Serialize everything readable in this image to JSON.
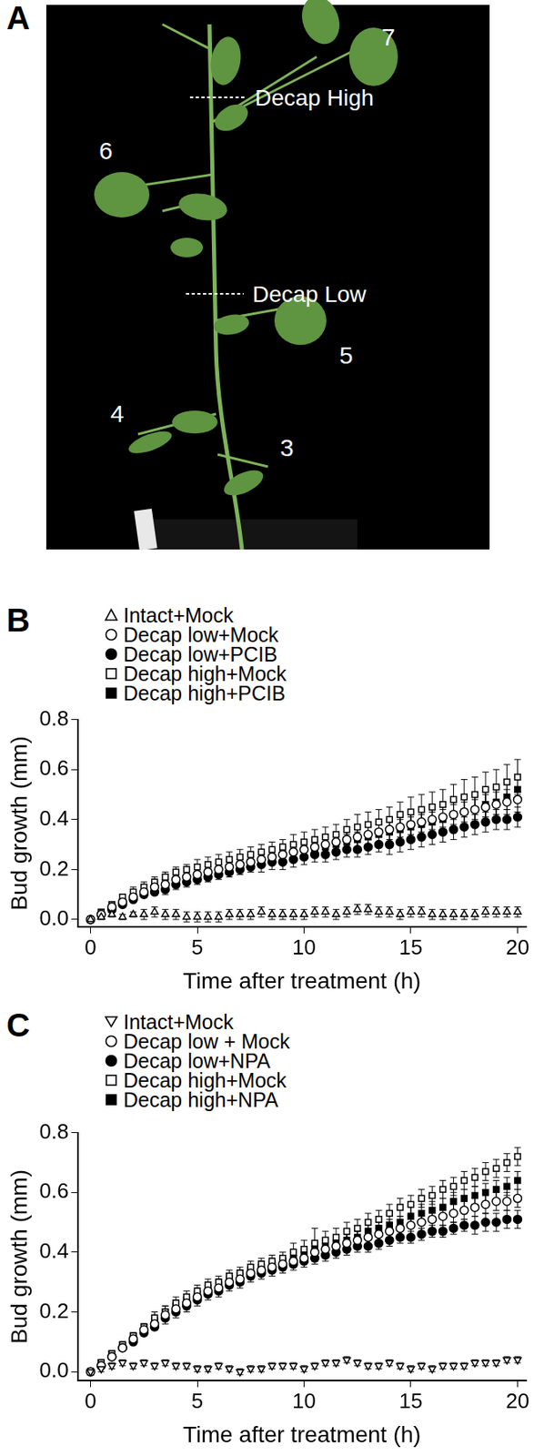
{
  "panel_a": {
    "panel_label": "A",
    "leaf_labels": [
      "7",
      "6",
      "5",
      "4",
      "3"
    ],
    "cut_labels": [
      "Decap High",
      "Decap Low"
    ]
  },
  "chart_data": [
    {
      "type": "scatter",
      "panel_label": "B",
      "x_label": "Time after treatment (h)",
      "y_label": "Bud growth (mm)",
      "xlim": [
        -0.6,
        20.4
      ],
      "xticks": [
        0,
        5,
        10,
        15,
        20
      ],
      "ylim": [
        -0.03,
        0.8
      ],
      "yticks": [
        {
          "value": 0,
          "label": "0.0"
        },
        0.2,
        0.4,
        0.6,
        0.8
      ],
      "grid": false,
      "legend": "top-left",
      "x": [
        0,
        0.5,
        1,
        1.5,
        2,
        2.5,
        3,
        3.5,
        4,
        4.5,
        5,
        5.5,
        6,
        6.5,
        7,
        7.5,
        8,
        8.5,
        9,
        9.5,
        10,
        10.5,
        11,
        11.5,
        12,
        12.5,
        13,
        13.5,
        14,
        14.5,
        15,
        15.5,
        16,
        16.5,
        17,
        17.5,
        18,
        18.5,
        19,
        19.5,
        20
      ],
      "series": [
        {
          "name": "Intact+Mock",
          "color": "#000000",
          "marker": "open-triangle-up",
          "values": [
            0.0,
            0.01,
            0.02,
            0.01,
            0.02,
            0.02,
            0.03,
            0.02,
            0.02,
            0.01,
            0.01,
            0.01,
            0.01,
            0.02,
            0.02,
            0.02,
            0.03,
            0.02,
            0.02,
            0.02,
            0.02,
            0.03,
            0.03,
            0.02,
            0.03,
            0.04,
            0.04,
            0.03,
            0.03,
            0.02,
            0.03,
            0.03,
            0.02,
            0.02,
            0.02,
            0.02,
            0.02,
            0.03,
            0.03,
            0.03,
            0.03
          ],
          "errors": [
            0.0,
            0.01,
            0.01,
            0.01,
            0.01,
            0.02,
            0.02,
            0.02,
            0.02,
            0.02,
            0.02,
            0.02,
            0.02,
            0.02,
            0.02,
            0.02,
            0.02,
            0.02,
            0.02,
            0.02,
            0.02,
            0.02,
            0.02,
            0.02,
            0.02,
            0.02,
            0.02,
            0.02,
            0.02,
            0.02,
            0.02,
            0.02,
            0.02,
            0.02,
            0.02,
            0.02,
            0.02,
            0.02,
            0.02,
            0.02,
            0.02
          ]
        },
        {
          "name": "Decap low+Mock",
          "color": "#000000",
          "marker": "open-circle",
          "values": [
            0.0,
            0.02,
            0.05,
            0.07,
            0.09,
            0.11,
            0.13,
            0.14,
            0.16,
            0.17,
            0.18,
            0.19,
            0.2,
            0.21,
            0.22,
            0.23,
            0.24,
            0.25,
            0.26,
            0.27,
            0.28,
            0.29,
            0.3,
            0.31,
            0.32,
            0.33,
            0.34,
            0.35,
            0.36,
            0.37,
            0.38,
            0.39,
            0.4,
            0.41,
            0.42,
            0.43,
            0.44,
            0.45,
            0.46,
            0.47,
            0.48
          ],
          "errors": [
            0.0,
            0.01,
            0.01,
            0.01,
            0.01,
            0.01,
            0.02,
            0.02,
            0.02,
            0.02,
            0.02,
            0.02,
            0.02,
            0.02,
            0.02,
            0.03,
            0.03,
            0.03,
            0.03,
            0.03,
            0.03,
            0.03,
            0.03,
            0.03,
            0.03,
            0.04,
            0.04,
            0.04,
            0.04,
            0.04,
            0.04,
            0.04,
            0.04,
            0.04,
            0.05,
            0.05,
            0.05,
            0.05,
            0.05,
            0.05,
            0.05
          ]
        },
        {
          "name": "Decap low+PCIB",
          "color": "#000000",
          "marker": "filled-circle",
          "values": [
            0.0,
            0.02,
            0.04,
            0.06,
            0.08,
            0.1,
            0.11,
            0.12,
            0.14,
            0.15,
            0.16,
            0.17,
            0.18,
            0.19,
            0.2,
            0.21,
            0.22,
            0.23,
            0.23,
            0.24,
            0.25,
            0.26,
            0.26,
            0.27,
            0.28,
            0.28,
            0.29,
            0.3,
            0.3,
            0.31,
            0.32,
            0.33,
            0.34,
            0.35,
            0.36,
            0.37,
            0.38,
            0.39,
            0.4,
            0.4,
            0.41
          ],
          "errors": [
            0.0,
            0.01,
            0.01,
            0.01,
            0.01,
            0.01,
            0.01,
            0.02,
            0.02,
            0.02,
            0.02,
            0.02,
            0.02,
            0.02,
            0.02,
            0.02,
            0.03,
            0.03,
            0.03,
            0.03,
            0.03,
            0.03,
            0.03,
            0.03,
            0.03,
            0.03,
            0.03,
            0.03,
            0.04,
            0.04,
            0.04,
            0.04,
            0.04,
            0.04,
            0.04,
            0.04,
            0.04,
            0.04,
            0.04,
            0.04,
            0.04
          ]
        },
        {
          "name": "Decap high+Mock",
          "color": "#000000",
          "marker": "open-square",
          "values": [
            0.0,
            0.03,
            0.06,
            0.09,
            0.11,
            0.13,
            0.15,
            0.17,
            0.19,
            0.2,
            0.21,
            0.22,
            0.23,
            0.24,
            0.25,
            0.26,
            0.27,
            0.28,
            0.29,
            0.3,
            0.31,
            0.32,
            0.33,
            0.34,
            0.36,
            0.37,
            0.38,
            0.39,
            0.4,
            0.42,
            0.43,
            0.44,
            0.45,
            0.46,
            0.48,
            0.49,
            0.5,
            0.52,
            0.53,
            0.55,
            0.57
          ],
          "errors": [
            0.0,
            0.01,
            0.01,
            0.01,
            0.02,
            0.02,
            0.02,
            0.02,
            0.02,
            0.02,
            0.03,
            0.03,
            0.03,
            0.03,
            0.03,
            0.03,
            0.03,
            0.03,
            0.03,
            0.04,
            0.04,
            0.04,
            0.04,
            0.04,
            0.04,
            0.05,
            0.05,
            0.05,
            0.05,
            0.05,
            0.06,
            0.06,
            0.06,
            0.06,
            0.06,
            0.07,
            0.07,
            0.07,
            0.07,
            0.07,
            0.07
          ]
        },
        {
          "name": "Decap high+PCIB",
          "color": "#000000",
          "marker": "filled-square",
          "values": [
            0.0,
            0.02,
            0.04,
            0.07,
            0.09,
            0.11,
            0.12,
            0.14,
            0.15,
            0.16,
            0.18,
            0.19,
            0.2,
            0.21,
            0.22,
            0.23,
            0.24,
            0.25,
            0.26,
            0.27,
            0.28,
            0.28,
            0.29,
            0.3,
            0.31,
            0.32,
            0.33,
            0.34,
            0.35,
            0.36,
            0.37,
            0.38,
            0.39,
            0.4,
            0.42,
            0.43,
            0.44,
            0.46,
            0.47,
            0.49,
            0.52
          ],
          "errors": [
            0.0,
            0.01,
            0.01,
            0.01,
            0.01,
            0.01,
            0.02,
            0.02,
            0.02,
            0.02,
            0.02,
            0.02,
            0.02,
            0.02,
            0.02,
            0.03,
            0.03,
            0.03,
            0.03,
            0.03,
            0.03,
            0.03,
            0.03,
            0.03,
            0.03,
            0.03,
            0.04,
            0.04,
            0.04,
            0.04,
            0.04,
            0.04,
            0.04,
            0.04,
            0.04,
            0.04,
            0.04,
            0.05,
            0.05,
            0.05,
            0.05
          ]
        }
      ]
    },
    {
      "type": "scatter",
      "panel_label": "C",
      "x_label": "Time after treatment (h)",
      "y_label": "Bud growth (mm)",
      "xlim": [
        -0.6,
        20.4
      ],
      "xticks": [
        0,
        5,
        10,
        15,
        20
      ],
      "ylim": [
        -0.03,
        0.8
      ],
      "yticks": [
        {
          "value": 0,
          "label": "0.0"
        },
        0.2,
        0.4,
        0.6,
        0.8
      ],
      "grid": false,
      "legend": "top-left",
      "x": [
        0,
        0.5,
        1,
        1.5,
        2,
        2.5,
        3,
        3.5,
        4,
        4.5,
        5,
        5.5,
        6,
        6.5,
        7,
        7.5,
        8,
        8.5,
        9,
        9.5,
        10,
        10.5,
        11,
        11.5,
        12,
        12.5,
        13,
        13.5,
        14,
        14.5,
        15,
        15.5,
        16,
        16.5,
        17,
        17.5,
        18,
        18.5,
        19,
        19.5,
        20
      ],
      "series": [
        {
          "name": "Intact+Mock",
          "color": "#000000",
          "marker": "open-triangle-down",
          "values": [
            0.0,
            0.01,
            0.02,
            0.03,
            0.02,
            0.03,
            0.02,
            0.03,
            0.02,
            0.02,
            0.01,
            0.01,
            0.02,
            0.01,
            0.0,
            0.01,
            0.01,
            0.02,
            0.02,
            0.02,
            0.01,
            0.02,
            0.03,
            0.03,
            0.04,
            0.03,
            0.02,
            0.02,
            0.03,
            0.02,
            0.01,
            0.02,
            0.01,
            0.02,
            0.02,
            0.02,
            0.03,
            0.03,
            0.03,
            0.04,
            0.04
          ],
          "errors": [
            0.0,
            0.01,
            0.01,
            0.01,
            0.01,
            0.01,
            0.01,
            0.01,
            0.01,
            0.01,
            0.01,
            0.01,
            0.01,
            0.01,
            0.01,
            0.01,
            0.01,
            0.01,
            0.01,
            0.01,
            0.01,
            0.01,
            0.01,
            0.01,
            0.01,
            0.01,
            0.01,
            0.01,
            0.01,
            0.01,
            0.01,
            0.01,
            0.01,
            0.01,
            0.01,
            0.01,
            0.01,
            0.01,
            0.01,
            0.01,
            0.01
          ]
        },
        {
          "name": "Decap low + Mock",
          "color": "#000000",
          "marker": "open-circle",
          "values": [
            0.0,
            0.02,
            0.05,
            0.08,
            0.11,
            0.14,
            0.16,
            0.19,
            0.21,
            0.23,
            0.25,
            0.27,
            0.28,
            0.3,
            0.31,
            0.33,
            0.34,
            0.35,
            0.36,
            0.37,
            0.38,
            0.4,
            0.41,
            0.42,
            0.43,
            0.44,
            0.45,
            0.46,
            0.47,
            0.48,
            0.49,
            0.5,
            0.51,
            0.52,
            0.53,
            0.54,
            0.55,
            0.56,
            0.57,
            0.57,
            0.58
          ],
          "errors": [
            0.0,
            0.01,
            0.01,
            0.01,
            0.01,
            0.01,
            0.02,
            0.02,
            0.02,
            0.02,
            0.02,
            0.02,
            0.02,
            0.02,
            0.02,
            0.02,
            0.02,
            0.02,
            0.02,
            0.02,
            0.02,
            0.03,
            0.03,
            0.03,
            0.03,
            0.03,
            0.03,
            0.03,
            0.03,
            0.03,
            0.03,
            0.03,
            0.03,
            0.03,
            0.03,
            0.03,
            0.03,
            0.03,
            0.03,
            0.03,
            0.03
          ]
        },
        {
          "name": "Decap low+NPA",
          "color": "#000000",
          "marker": "filled-circle",
          "values": [
            0.0,
            0.02,
            0.05,
            0.08,
            0.1,
            0.13,
            0.15,
            0.18,
            0.2,
            0.22,
            0.24,
            0.26,
            0.27,
            0.29,
            0.3,
            0.32,
            0.33,
            0.34,
            0.35,
            0.36,
            0.37,
            0.38,
            0.39,
            0.4,
            0.41,
            0.42,
            0.42,
            0.43,
            0.44,
            0.45,
            0.45,
            0.46,
            0.47,
            0.47,
            0.48,
            0.49,
            0.49,
            0.5,
            0.5,
            0.51,
            0.51
          ],
          "errors": [
            0.0,
            0.01,
            0.01,
            0.01,
            0.01,
            0.01,
            0.01,
            0.02,
            0.02,
            0.02,
            0.02,
            0.02,
            0.02,
            0.02,
            0.02,
            0.02,
            0.02,
            0.02,
            0.02,
            0.02,
            0.02,
            0.02,
            0.02,
            0.02,
            0.02,
            0.02,
            0.02,
            0.02,
            0.02,
            0.02,
            0.02,
            0.02,
            0.02,
            0.02,
            0.02,
            0.02,
            0.03,
            0.03,
            0.03,
            0.03,
            0.03
          ]
        },
        {
          "name": "Decap high+Mock",
          "color": "#000000",
          "marker": "open-square",
          "values": [
            0.0,
            0.03,
            0.06,
            0.09,
            0.12,
            0.15,
            0.18,
            0.2,
            0.23,
            0.25,
            0.27,
            0.29,
            0.3,
            0.32,
            0.33,
            0.35,
            0.36,
            0.37,
            0.38,
            0.4,
            0.41,
            0.43,
            0.44,
            0.45,
            0.47,
            0.48,
            0.5,
            0.51,
            0.53,
            0.55,
            0.56,
            0.58,
            0.59,
            0.61,
            0.62,
            0.64,
            0.65,
            0.67,
            0.68,
            0.7,
            0.72
          ],
          "errors": [
            0.0,
            0.01,
            0.01,
            0.01,
            0.01,
            0.01,
            0.02,
            0.02,
            0.02,
            0.02,
            0.02,
            0.02,
            0.02,
            0.02,
            0.02,
            0.02,
            0.02,
            0.02,
            0.02,
            0.03,
            0.03,
            0.05,
            0.03,
            0.03,
            0.03,
            0.03,
            0.03,
            0.03,
            0.03,
            0.03,
            0.03,
            0.03,
            0.03,
            0.03,
            0.03,
            0.03,
            0.03,
            0.03,
            0.03,
            0.03,
            0.03
          ]
        },
        {
          "name": "Decap high+NPA",
          "color": "#000000",
          "marker": "filled-square",
          "values": [
            0.0,
            0.03,
            0.06,
            0.09,
            0.12,
            0.15,
            0.17,
            0.2,
            0.22,
            0.24,
            0.26,
            0.28,
            0.29,
            0.31,
            0.32,
            0.34,
            0.35,
            0.36,
            0.37,
            0.38,
            0.39,
            0.41,
            0.42,
            0.43,
            0.44,
            0.45,
            0.47,
            0.48,
            0.49,
            0.5,
            0.52,
            0.53,
            0.54,
            0.55,
            0.57,
            0.58,
            0.59,
            0.6,
            0.61,
            0.62,
            0.64
          ],
          "errors": [
            0.0,
            0.01,
            0.01,
            0.01,
            0.01,
            0.01,
            0.01,
            0.02,
            0.02,
            0.02,
            0.02,
            0.02,
            0.02,
            0.02,
            0.02,
            0.02,
            0.02,
            0.02,
            0.02,
            0.02,
            0.02,
            0.02,
            0.02,
            0.02,
            0.02,
            0.02,
            0.02,
            0.02,
            0.02,
            0.02,
            0.03,
            0.03,
            0.03,
            0.03,
            0.03,
            0.03,
            0.03,
            0.03,
            0.03,
            0.03,
            0.03
          ]
        }
      ]
    }
  ]
}
